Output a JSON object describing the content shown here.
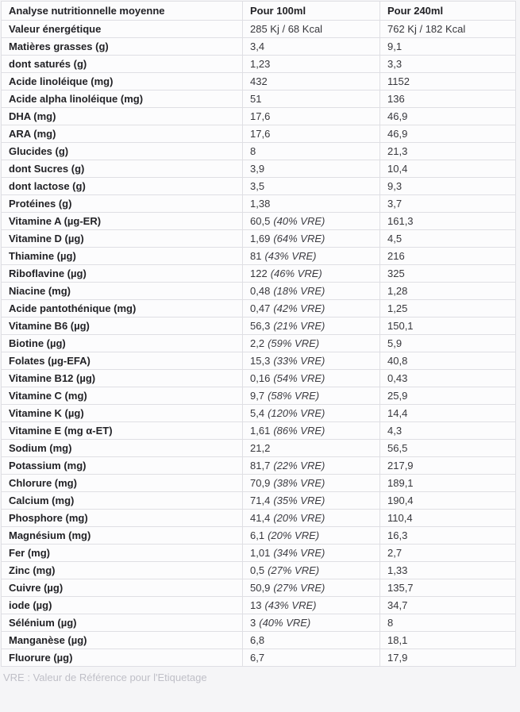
{
  "page": {
    "footer_note": "VRE : Valeur de Référence pour l'Etiquetage"
  },
  "table": {
    "columns": [
      "Analyse nutritionnelle moyenne",
      "Pour 100ml",
      "Pour 240ml"
    ],
    "rows": [
      {
        "label": "Valeur énergétique",
        "per_100ml": "285 Kj / 68 Kcal",
        "per_100ml_note": "",
        "per_240ml": "762 Kj / 182 Kcal"
      },
      {
        "label": "Matières grasses (g)",
        "per_100ml": "3,4",
        "per_100ml_note": "",
        "per_240ml": "9,1"
      },
      {
        "label": "dont saturés (g)",
        "per_100ml": "1,23",
        "per_100ml_note": "",
        "per_240ml": "3,3"
      },
      {
        "label": "Acide linoléique (mg)",
        "per_100ml": "432",
        "per_100ml_note": "",
        "per_240ml": "1152"
      },
      {
        "label": "Acide alpha linoléique (mg)",
        "per_100ml": "51",
        "per_100ml_note": "",
        "per_240ml": "136"
      },
      {
        "label": "DHA (mg)",
        "per_100ml": "17,6",
        "per_100ml_note": "",
        "per_240ml": "46,9"
      },
      {
        "label": "ARA (mg)",
        "per_100ml": "17,6",
        "per_100ml_note": "",
        "per_240ml": "46,9"
      },
      {
        "label": "Glucides (g)",
        "per_100ml": "8",
        "per_100ml_note": "",
        "per_240ml": "21,3"
      },
      {
        "label": "dont Sucres (g)",
        "per_100ml": "3,9",
        "per_100ml_note": "",
        "per_240ml": "10,4"
      },
      {
        "label": "dont lactose (g)",
        "per_100ml": "3,5",
        "per_100ml_note": "",
        "per_240ml": "9,3"
      },
      {
        "label": "Protéines (g)",
        "per_100ml": "1,38",
        "per_100ml_note": "",
        "per_240ml": "3,7"
      },
      {
        "label": "Vitamine A (µg-ER)",
        "per_100ml": "60,5",
        "per_100ml_note": "(40% VRE)",
        "per_240ml": "161,3"
      },
      {
        "label": "Vitamine D (µg)",
        "per_100ml": "1,69",
        "per_100ml_note": "(64% VRE)",
        "per_240ml": "4,5"
      },
      {
        "label": "Thiamine (µg)",
        "per_100ml": "81",
        "per_100ml_note": "(43% VRE)",
        "per_240ml": "216"
      },
      {
        "label": "Riboflavine (µg)",
        "per_100ml": "122",
        "per_100ml_note": "(46% VRE)",
        "per_240ml": "325"
      },
      {
        "label": "Niacine (mg)",
        "per_100ml": "0,48",
        "per_100ml_note": "(18% VRE)",
        "per_240ml": "1,28"
      },
      {
        "label": "Acide pantothénique (mg)",
        "per_100ml": "0,47",
        "per_100ml_note": "(42% VRE)",
        "per_240ml": "1,25"
      },
      {
        "label": "Vitamine B6 (µg)",
        "per_100ml": "56,3",
        "per_100ml_note": "(21% VRE)",
        "per_240ml": "150,1"
      },
      {
        "label": "Biotine (µg)",
        "per_100ml": "2,2",
        "per_100ml_note": "(59% VRE)",
        "per_240ml": "5,9"
      },
      {
        "label": "Folates (µg-EFA)",
        "per_100ml": "15,3",
        "per_100ml_note": "(33% VRE)",
        "per_240ml": "40,8"
      },
      {
        "label": "Vitamine B12 (µg)",
        "per_100ml": "0,16",
        "per_100ml_note": "(54% VRE)",
        "per_240ml": "0,43"
      },
      {
        "label": "Vitamine C (mg)",
        "per_100ml": "9,7",
        "per_100ml_note": "(58% VRE)",
        "per_240ml": "25,9"
      },
      {
        "label": "Vitamine K (µg)",
        "per_100ml": "5,4",
        "per_100ml_note": "(120% VRE)",
        "per_240ml": "14,4"
      },
      {
        "label": "Vitamine E (mg α-ET)",
        "per_100ml": "1,61",
        "per_100ml_note": "(86% VRE)",
        "per_240ml": "4,3"
      },
      {
        "label": "Sodium (mg)",
        "per_100ml": "21,2",
        "per_100ml_note": "",
        "per_240ml": "56,5"
      },
      {
        "label": "Potassium (mg)",
        "per_100ml": "81,7",
        "per_100ml_note": "(22% VRE)",
        "per_240ml": "217,9"
      },
      {
        "label": "Chlorure (mg)",
        "per_100ml": "70,9",
        "per_100ml_note": "(38% VRE)",
        "per_240ml": "189,1"
      },
      {
        "label": "Calcium (mg)",
        "per_100ml": "71,4",
        "per_100ml_note": "(35% VRE)",
        "per_240ml": "190,4"
      },
      {
        "label": "Phosphore (mg)",
        "per_100ml": "41,4",
        "per_100ml_note": "(20% VRE)",
        "per_240ml": "110,4"
      },
      {
        "label": "Magnésium (mg)",
        "per_100ml": "6,1",
        "per_100ml_note": "(20% VRE)",
        "per_240ml": "16,3"
      },
      {
        "label": "Fer (mg)",
        "per_100ml": "1,01",
        "per_100ml_note": "(34% VRE)",
        "per_240ml": "2,7"
      },
      {
        "label": "Zinc (mg)",
        "per_100ml": "0,5",
        "per_100ml_note": "(27% VRE)",
        "per_240ml": "1,33"
      },
      {
        "label": "Cuivre (µg)",
        "per_100ml": "50,9",
        "per_100ml_note": "(27% VRE)",
        "per_240ml": "135,7"
      },
      {
        "label": "iode (µg)",
        "per_100ml": "13",
        "per_100ml_note": "(43% VRE)",
        "per_240ml": "34,7"
      },
      {
        "label": "Sélénium (µg)",
        "per_100ml": "3",
        "per_100ml_note": "(40% VRE)",
        "per_240ml": "8"
      },
      {
        "label": "Manganèse (µg)",
        "per_100ml": "6,8",
        "per_100ml_note": "",
        "per_240ml": "18,1"
      },
      {
        "label": "Fluorure (µg)",
        "per_100ml": "6,7",
        "per_100ml_note": "",
        "per_240ml": "17,9"
      }
    ]
  },
  "colors": {
    "page_bg": "#f5f5f7",
    "cell_bg": "#fcfcfd",
    "border": "#dfdfe4",
    "label_text": "#222226",
    "value_text": "#37373c",
    "footer_text": "#bfbfc7"
  }
}
